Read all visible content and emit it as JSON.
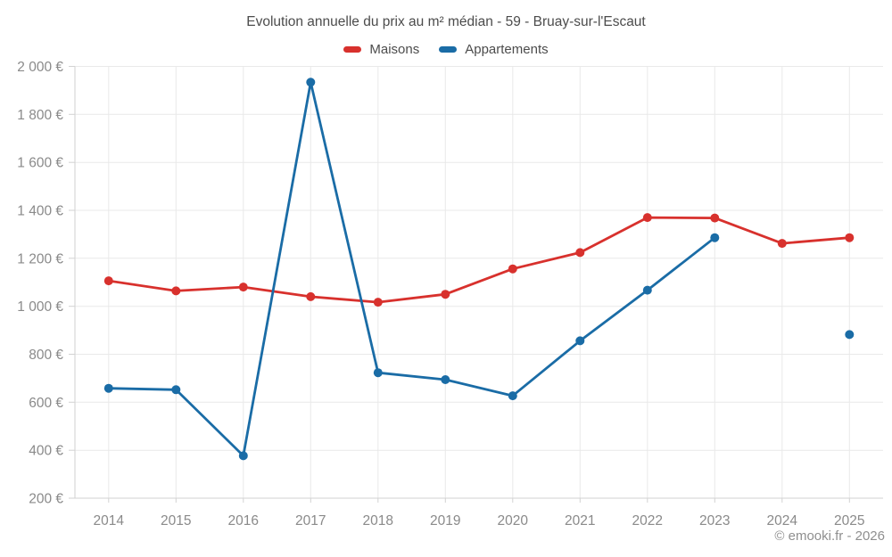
{
  "title": "Evolution annuelle du prix au m² médian - 59 - Bruay-sur-l'Escaut",
  "legend": [
    {
      "label": "Maisons",
      "color": "#d8312d"
    },
    {
      "label": "Appartements",
      "color": "#1a6ca6"
    }
  ],
  "footer": {
    "copyright": "© emooki.fr - 2026"
  },
  "chart_data": {
    "type": "line",
    "title": "Evolution annuelle du prix au m² médian - 59 - Bruay-sur-l'Escaut",
    "categories": [
      "2014",
      "2015",
      "2016",
      "2017",
      "2018",
      "2019",
      "2020",
      "2021",
      "2022",
      "2023",
      "2024",
      "2025"
    ],
    "series": [
      {
        "name": "Maisons",
        "color": "#d8312d",
        "values": [
          1106,
          1064,
          1080,
          1040,
          1017,
          1050,
          1156,
          1224,
          1370,
          1368,
          1262,
          1286
        ]
      },
      {
        "name": "Appartements",
        "color": "#1a6ca6",
        "values": [
          658,
          652,
          377,
          1934,
          723,
          694,
          627,
          856,
          1067,
          1286,
          null,
          882
        ]
      }
    ],
    "xlabel": "",
    "ylabel": "",
    "ylim": [
      200,
      2000
    ],
    "ytick_step": 200,
    "y_ticks": [
      {
        "value": 2000,
        "label": "2 000 €"
      },
      {
        "value": 1800,
        "label": "1 800 €"
      },
      {
        "value": 1600,
        "label": "1 600 €"
      },
      {
        "value": 1400,
        "label": "1 400 €"
      },
      {
        "value": 1200,
        "label": "1 200 €"
      },
      {
        "value": 1000,
        "label": "1 000 €"
      },
      {
        "value": 800,
        "label": "800 €"
      },
      {
        "value": 600,
        "label": "600 €"
      },
      {
        "value": 400,
        "label": "400 €"
      },
      {
        "value": 200,
        "label": "200 €"
      }
    ],
    "grid": true,
    "legend_position": "top",
    "colors": {
      "grid": "#e9e9e9",
      "axis": "#d2d2d2",
      "tick_label": "#8a8a8a",
      "background": "#ffffff"
    }
  }
}
